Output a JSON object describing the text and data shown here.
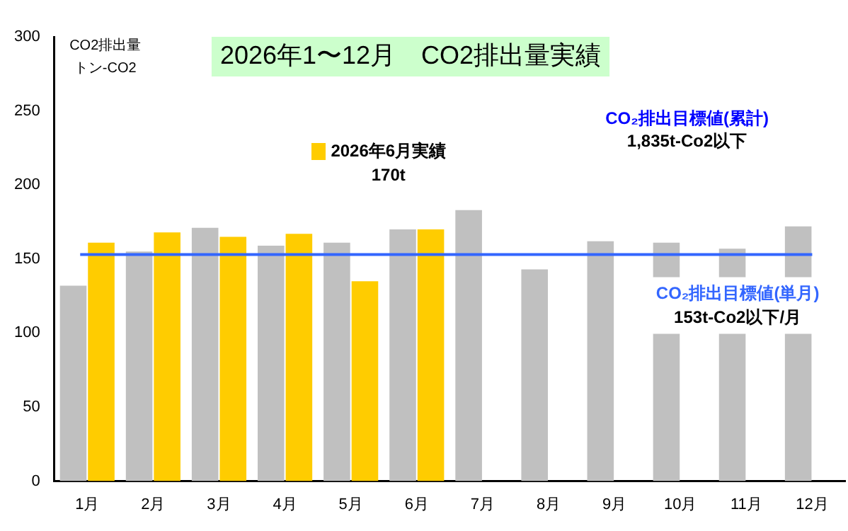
{
  "chart_data": {
    "type": "bar",
    "title": "2026年1〜12月　CO2排出量実績",
    "ylabel": "CO2排出量トン-CO2",
    "categories": [
      "1月",
      "2月",
      "3月",
      "4月",
      "5月",
      "6月",
      "7月",
      "8月",
      "9月",
      "10月",
      "11月",
      "12月"
    ],
    "series": [
      {
        "color": "#c0c0c0",
        "values": [
          132,
          155,
          171,
          159,
          161,
          170,
          183,
          143,
          162,
          161,
          157,
          172
        ]
      },
      {
        "color": "#ffcc00",
        "values": [
          161,
          168,
          165,
          167,
          135,
          170,
          null,
          null,
          null,
          null,
          null,
          null
        ]
      }
    ],
    "ylim": [
      0,
      300
    ],
    "yticks": [
      0,
      50,
      100,
      150,
      200,
      250,
      300
    ],
    "grid": false,
    "legend": false,
    "ref_lines": [
      {
        "axis": "y",
        "value": 153,
        "label": "CO₂排出目標値(単月)\n153t-Co2以下/月",
        "color": "#3366ff"
      }
    ],
    "annotations": [
      {
        "text": "2026年6月実績\n170t",
        "x": "6月",
        "y": 170
      },
      "CO₂排出目標値(累計)\n1,835t-Co2以下"
    ]
  }
}
